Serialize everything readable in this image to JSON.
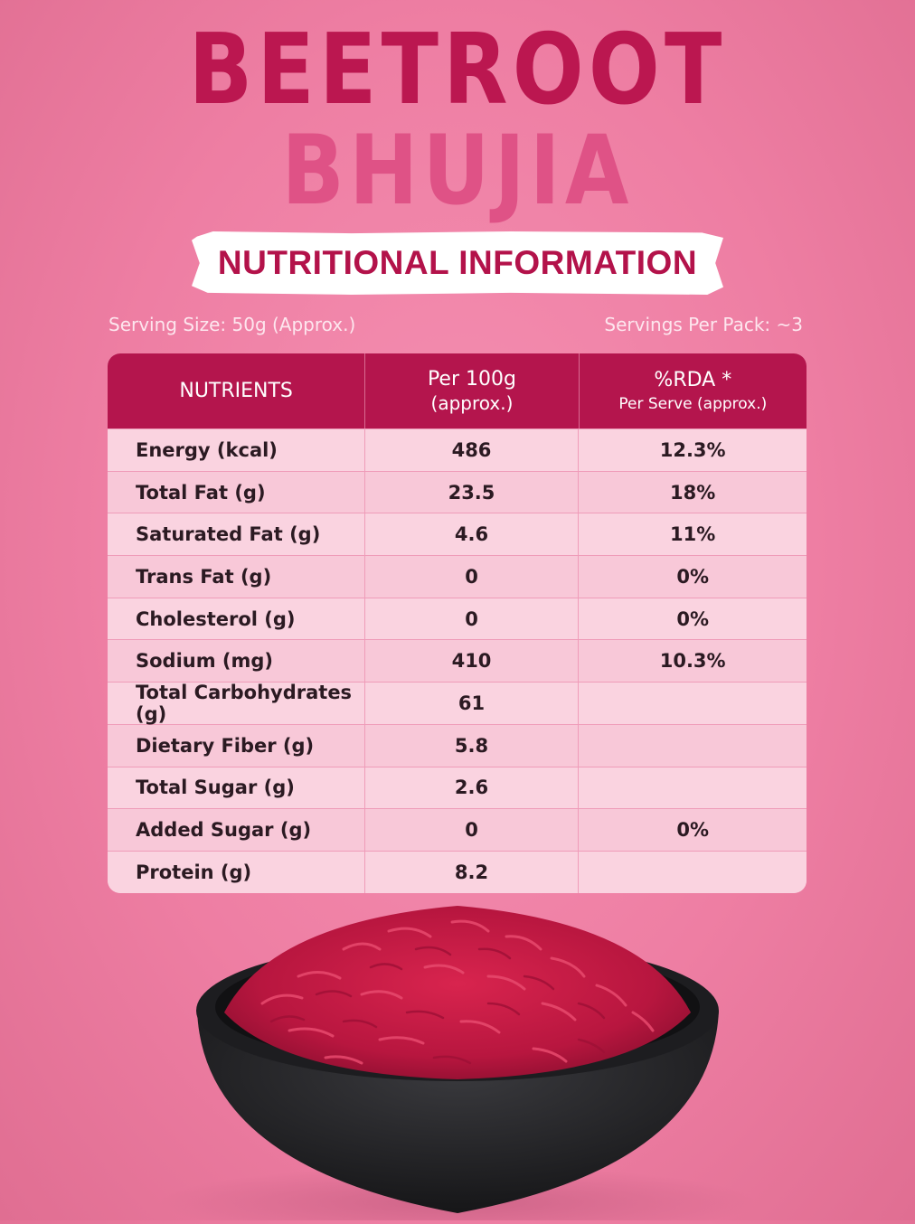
{
  "title": {
    "line1": "BEETROOT",
    "line2": "BHUJIA"
  },
  "banner": {
    "text": "NUTRITIONAL INFORMATION"
  },
  "serving": {
    "size": "Serving Size: 50g (Approx.)",
    "per_pack": "Servings Per Pack: ~3"
  },
  "table": {
    "headers": {
      "nutrients": "NUTRIENTS",
      "per100_line1": "Per 100g",
      "per100_line2": "(approx.)",
      "rda_line1": "%RDA *",
      "rda_line2": "Per Serve (approx.)"
    },
    "rows": [
      {
        "nutrient": "Energy (kcal)",
        "per100": "486",
        "rda": "12.3%"
      },
      {
        "nutrient": "Total Fat (g)",
        "per100": "23.5",
        "rda": "18%"
      },
      {
        "nutrient": "Saturated Fat (g)",
        "per100": "4.6",
        "rda": "11%"
      },
      {
        "nutrient": "Trans Fat (g)",
        "per100": "0",
        "rda": "0%"
      },
      {
        "nutrient": "Cholesterol (g)",
        "per100": "0",
        "rda": "0%"
      },
      {
        "nutrient": "Sodium (mg)",
        "per100": "410",
        "rda": "10.3%"
      },
      {
        "nutrient": "Total Carbohydrates (g)",
        "per100": "61",
        "rda": ""
      },
      {
        "nutrient": "Dietary Fiber (g)",
        "per100": "5.8",
        "rda": ""
      },
      {
        "nutrient": "Total Sugar (g)",
        "per100": "2.6",
        "rda": ""
      },
      {
        "nutrient": "Added Sugar (g)",
        "per100": "0",
        "rda": "0%"
      },
      {
        "nutrient": "Protein (g)",
        "per100": "8.2",
        "rda": ""
      }
    ]
  },
  "colors": {
    "brand_dark": "#b4154d",
    "brand_light": "#df5286",
    "background": "#ee7ea3",
    "table_row": "#fad3e0"
  }
}
